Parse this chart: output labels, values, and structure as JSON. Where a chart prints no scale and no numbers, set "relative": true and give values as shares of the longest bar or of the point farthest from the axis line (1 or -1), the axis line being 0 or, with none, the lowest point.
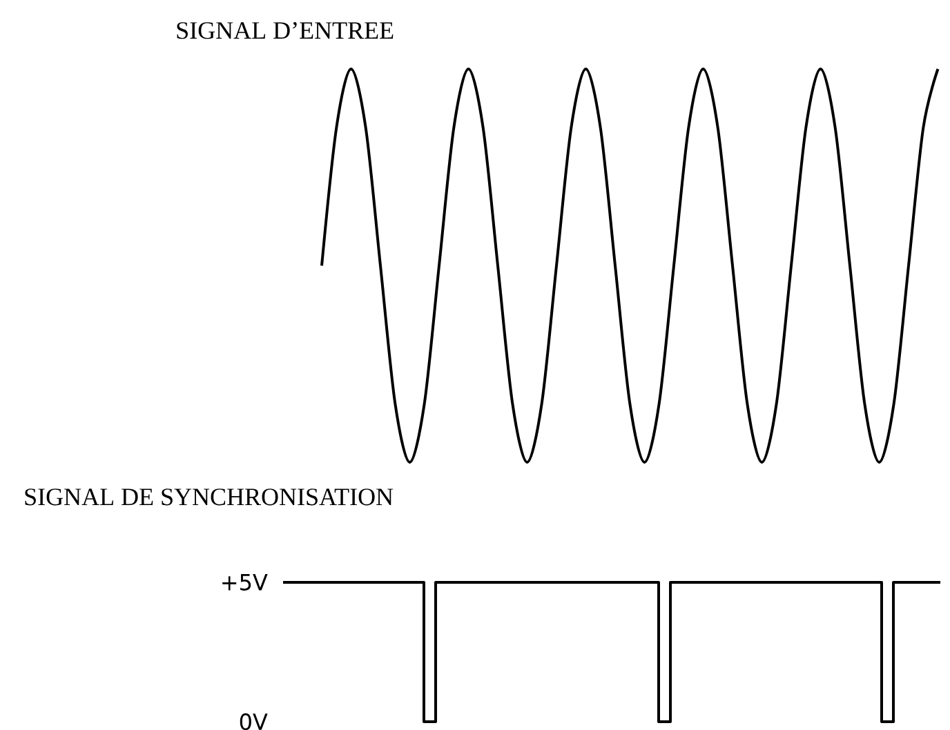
{
  "chart_data": [
    {
      "type": "line",
      "title": "SIGNAL D’ENTREE",
      "relative": true,
      "color": "#000000",
      "categories": [
        null,
        null,
        null,
        null,
        null,
        null,
        null,
        null,
        null,
        null,
        null,
        null,
        null,
        null,
        null,
        null,
        null,
        null,
        null,
        null,
        null,
        null,
        null,
        null,
        null,
        null,
        null,
        null,
        null,
        null,
        null,
        null,
        null,
        null,
        null,
        null,
        null,
        null,
        null,
        null,
        null,
        null,
        null
      ],
      "values": [
        0.5,
        0.85,
        1,
        0.85,
        0.5,
        0.15,
        0,
        0.15,
        0.5,
        0.85,
        1,
        0.85,
        0.5,
        0.15,
        0,
        0.15,
        0.5,
        0.85,
        1,
        0.85,
        0.5,
        0.15,
        0,
        0.15,
        0.5,
        0.85,
        1,
        0.85,
        0.5,
        0.15,
        0,
        0.15,
        0.5,
        0.85,
        1,
        0.85,
        0.5,
        0.15,
        0,
        0.15,
        0.5,
        0.85,
        1
      ]
    },
    {
      "type": "step",
      "title": "SIGNAL DE SYNCHRONISATION",
      "color": "#000000",
      "tick_labels": "y",
      "ylim": [
        0,
        5
      ],
      "yticks": [
        {
          "value": 0,
          "label": "0V"
        },
        {
          "value": 5,
          "label": "+5V"
        }
      ],
      "categories": [
        null,
        null,
        null,
        null,
        null,
        null,
        null,
        null,
        null,
        null,
        null,
        null,
        null,
        null,
        null,
        null,
        null,
        null,
        null,
        null,
        null,
        null,
        null,
        null,
        null,
        null,
        null,
        null,
        null,
        null,
        null,
        null,
        null,
        null,
        null,
        null,
        null,
        null,
        null,
        null,
        null,
        null,
        null,
        null,
        null,
        null,
        null,
        null,
        null,
        null,
        null,
        null,
        null,
        null,
        null,
        null,
        null
      ],
      "values": [
        5,
        5,
        5,
        5,
        5,
        5,
        5,
        5,
        5,
        5,
        5,
        5,
        0,
        5,
        5,
        5,
        5,
        5,
        5,
        5,
        5,
        5,
        5,
        5,
        5,
        5,
        5,
        5,
        5,
        5,
        5,
        5,
        0,
        5,
        5,
        5,
        5,
        5,
        5,
        5,
        5,
        5,
        5,
        5,
        5,
        5,
        5,
        5,
        5,
        5,
        5,
        0,
        5,
        5,
        5,
        5,
        5
      ]
    }
  ]
}
